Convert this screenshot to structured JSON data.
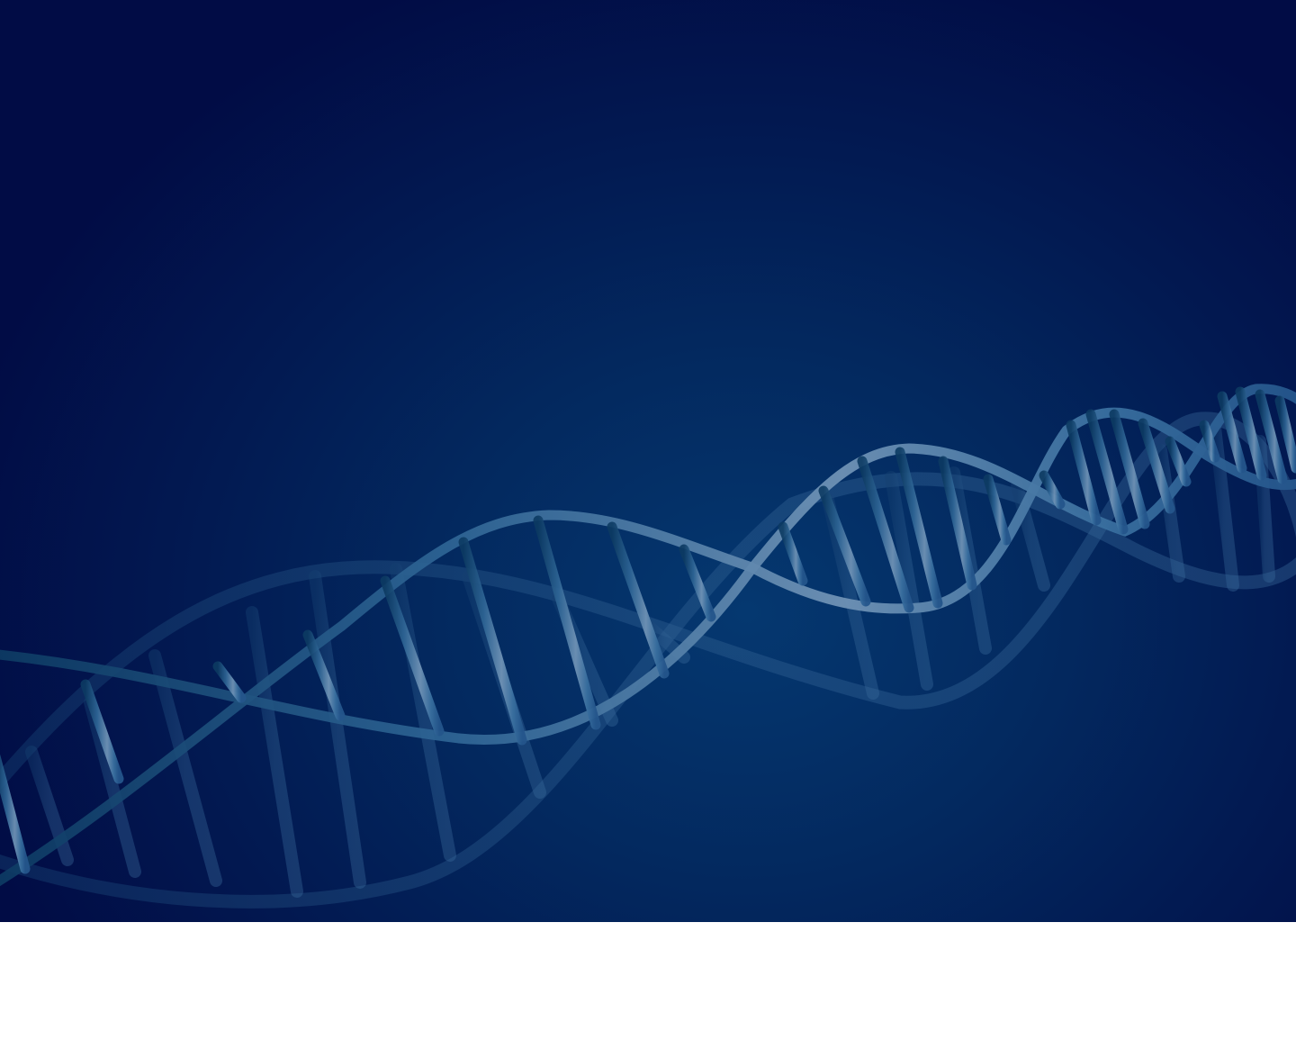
{
  "scene": {
    "subject": "dna-double-helix",
    "colors": {
      "background_dark": "#010c45",
      "background_mid": "#03295f",
      "background_glow": "#053870",
      "helix_front": "#5d86ad",
      "helix_back": "#2b5a8c",
      "footer": "#ffffff"
    }
  }
}
